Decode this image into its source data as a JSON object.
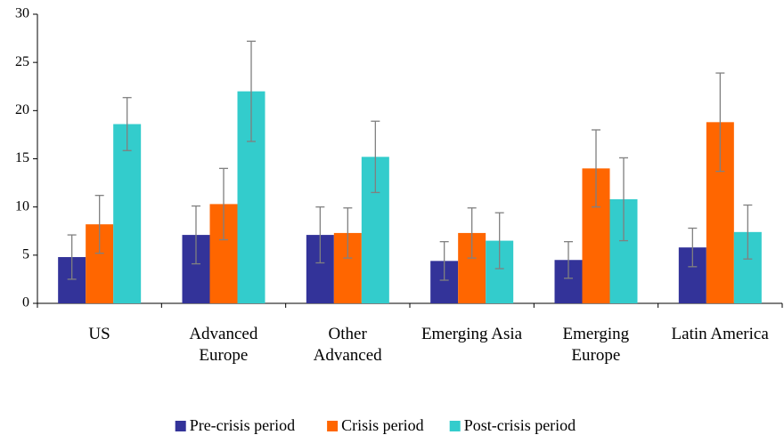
{
  "chart_data": {
    "type": "bar",
    "categories": [
      "US",
      "Advanced\nEurope",
      "Other\nAdvanced",
      "Emerging Asia",
      "Emerging\nEurope",
      "Latin America"
    ],
    "series": [
      {
        "name": "Pre-crisis period",
        "color": "#333399",
        "values": [
          4.8,
          7.1,
          7.1,
          4.4,
          4.5,
          5.8
        ],
        "errors": [
          2.3,
          3.0,
          2.9,
          2.0,
          1.9,
          2.0
        ]
      },
      {
        "name": "Crisis period",
        "color": "#ff6600",
        "values": [
          8.2,
          10.3,
          7.3,
          7.3,
          14.0,
          18.8
        ],
        "errors": [
          3.0,
          3.7,
          2.6,
          2.6,
          4.0,
          5.1
        ]
      },
      {
        "name": "Post-crisis period",
        "color": "#33cccc",
        "values": [
          18.6,
          22.0,
          15.2,
          6.5,
          10.8,
          7.4
        ],
        "errors": [
          2.75,
          5.2,
          3.7,
          2.9,
          4.3,
          2.8
        ]
      }
    ],
    "ylim": [
      0,
      30
    ],
    "yticks": [
      0,
      5,
      10,
      15,
      20,
      25,
      30
    ],
    "legend": "bottom"
  }
}
